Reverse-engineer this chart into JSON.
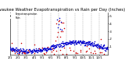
{
  "title": "Milwaukee Weather Evapotranspiration vs Rain per Day (Inches)",
  "title_fontsize": 3.8,
  "legend_labels": [
    "Evapotranspiration",
    "Rain"
  ],
  "background_color": "#ffffff",
  "grid_color": "#888888",
  "ylim": [
    0,
    0.55
  ],
  "ytick_vals": [
    0.1,
    0.2,
    0.3,
    0.4,
    0.5
  ],
  "tick_fontsize": 3.0,
  "et_color": "#0000cc",
  "rain_color": "#cc0000",
  "marker_size": 1.2,
  "num_days": 365,
  "month_starts": [
    1,
    32,
    60,
    91,
    121,
    152,
    182,
    213,
    244,
    274,
    305,
    335
  ],
  "month_labels": [
    "1/1",
    "2/1",
    "3/1",
    "4/1",
    "5/1",
    "6/1",
    "7/1",
    "8/1",
    "9/1",
    "10/1",
    "11/1",
    "12/1"
  ]
}
